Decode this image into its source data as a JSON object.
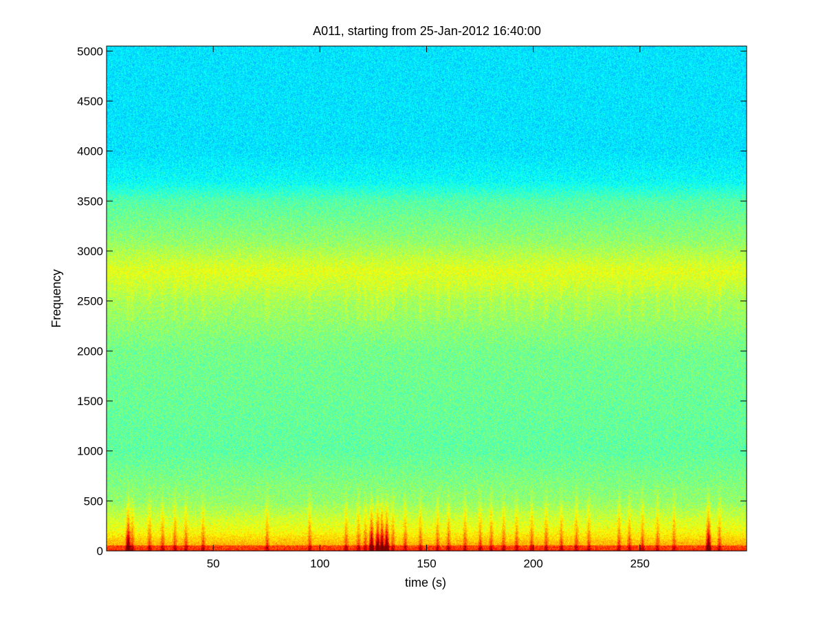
{
  "chart_data": {
    "type": "heatmap",
    "title": "A011, starting from 25-Jan-2012 16:40:00",
    "xlabel": "time (s)",
    "ylabel": "Frequency",
    "xlim": [
      0,
      300
    ],
    "ylim": [
      0,
      5050
    ],
    "x_ticks": [
      50,
      100,
      150,
      200,
      250
    ],
    "x_tick_labels": [
      "50",
      "100",
      "150",
      "200",
      "250"
    ],
    "y_ticks": [
      0,
      500,
      1000,
      1500,
      2000,
      2500,
      3000,
      3500,
      4000,
      4500,
      5000
    ],
    "y_tick_labels": [
      "0",
      "500",
      "1000",
      "1500",
      "2000",
      "2500",
      "3000",
      "3500",
      "4000",
      "4500",
      "5000"
    ],
    "colormap": "jet",
    "grid": false,
    "background_level_by_frequency": [
      {
        "frequency": 0,
        "level": 0.74
      },
      {
        "frequency": 200,
        "level": 0.62
      },
      {
        "frequency": 500,
        "level": 0.52
      },
      {
        "frequency": 1000,
        "level": 0.47
      },
      {
        "frequency": 2000,
        "level": 0.49
      },
      {
        "frequency": 2500,
        "level": 0.54
      },
      {
        "frequency": 2800,
        "level": 0.6
      },
      {
        "frequency": 3100,
        "level": 0.52
      },
      {
        "frequency": 3500,
        "level": 0.46
      },
      {
        "frequency": 3700,
        "level": 0.38
      },
      {
        "frequency": 4000,
        "level": 0.35
      },
      {
        "frequency": 5050,
        "level": 0.35
      }
    ],
    "transient_events_s": [
      10,
      12,
      20,
      26,
      32,
      37,
      45,
      75,
      95,
      112,
      118,
      121,
      124,
      127,
      129,
      131,
      134,
      140,
      147,
      155,
      160,
      168,
      175,
      180,
      186,
      192,
      199,
      206,
      213,
      220,
      226,
      240,
      245,
      251,
      258,
      266,
      282,
      287
    ],
    "strong_events_s": [
      10,
      124,
      127,
      129,
      131,
      282
    ]
  }
}
